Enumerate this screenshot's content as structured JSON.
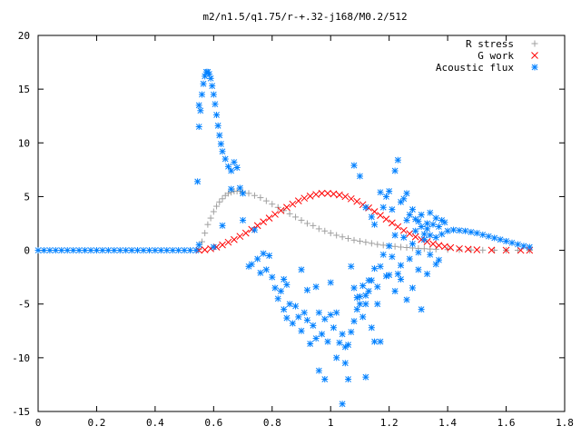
{
  "chart_data": {
    "type": "scatter",
    "title": "m2/n1.5/q1.75/r-+.32-j168/M0.2/512",
    "xlabel": "",
    "ylabel": "",
    "xlim": [
      0,
      1.8
    ],
    "ylim": [
      -15,
      20
    ],
    "xticks": [
      0,
      0.2,
      0.4,
      0.6,
      0.8,
      1,
      1.2,
      1.4,
      1.6,
      1.8
    ],
    "xtick_labels": [
      "0",
      "0.2",
      "0.4",
      "0.6",
      "0.8",
      "1",
      "1.2",
      "1.4",
      "1.6",
      "1.8"
    ],
    "yticks": [
      -15,
      -10,
      -5,
      0,
      5,
      10,
      15,
      20
    ],
    "ytick_labels": [
      "-15",
      "-10",
      "-5",
      "0",
      "5",
      "10",
      "15",
      "20"
    ],
    "grid": false,
    "legend_position": "top-right",
    "series": [
      {
        "name": "R stress",
        "marker": "plus",
        "color": "#a0a0a0",
        "points": [
          [
            0.55,
            0.1
          ],
          [
            0.56,
            0.8
          ],
          [
            0.57,
            1.6
          ],
          [
            0.58,
            2.4
          ],
          [
            0.59,
            3.0
          ],
          [
            0.6,
            3.6
          ],
          [
            0.61,
            4.1
          ],
          [
            0.62,
            4.5
          ],
          [
            0.63,
            4.8
          ],
          [
            0.64,
            5.1
          ],
          [
            0.65,
            5.3
          ],
          [
            0.66,
            5.4
          ],
          [
            0.67,
            5.5
          ],
          [
            0.68,
            5.5
          ],
          [
            0.69,
            5.5
          ],
          [
            0.7,
            5.4
          ],
          [
            0.72,
            5.3
          ],
          [
            0.74,
            5.1
          ],
          [
            0.76,
            4.9
          ],
          [
            0.78,
            4.6
          ],
          [
            0.8,
            4.3
          ],
          [
            0.82,
            4.0
          ],
          [
            0.84,
            3.7
          ],
          [
            0.86,
            3.4
          ],
          [
            0.88,
            3.1
          ],
          [
            0.9,
            2.8
          ],
          [
            0.92,
            2.5
          ],
          [
            0.94,
            2.3
          ],
          [
            0.96,
            2.0
          ],
          [
            0.98,
            1.8
          ],
          [
            1.0,
            1.6
          ],
          [
            1.02,
            1.4
          ],
          [
            1.04,
            1.25
          ],
          [
            1.06,
            1.1
          ],
          [
            1.08,
            0.95
          ],
          [
            1.1,
            0.85
          ],
          [
            1.12,
            0.75
          ],
          [
            1.14,
            0.65
          ],
          [
            1.16,
            0.55
          ],
          [
            1.18,
            0.48
          ],
          [
            1.2,
            0.42
          ],
          [
            1.22,
            0.36
          ],
          [
            1.24,
            0.3
          ],
          [
            1.26,
            0.26
          ],
          [
            1.28,
            0.22
          ],
          [
            1.3,
            0.18
          ],
          [
            1.32,
            0.15
          ],
          [
            1.34,
            0.12
          ],
          [
            1.36,
            0.1
          ],
          [
            1.4,
            0.07
          ],
          [
            1.44,
            0.05
          ],
          [
            1.48,
            0.03
          ],
          [
            1.52,
            0.02
          ],
          [
            1.56,
            0.01
          ],
          [
            1.6,
            0.01
          ],
          [
            1.64,
            0.0
          ],
          [
            1.68,
            0.0
          ]
        ]
      },
      {
        "name": "G work",
        "marker": "cross",
        "color": "#ff0000",
        "points": [
          [
            0.55,
            0.0
          ],
          [
            0.57,
            0.05
          ],
          [
            0.59,
            0.15
          ],
          [
            0.61,
            0.3
          ],
          [
            0.63,
            0.5
          ],
          [
            0.65,
            0.75
          ],
          [
            0.67,
            1.0
          ],
          [
            0.69,
            1.3
          ],
          [
            0.71,
            1.6
          ],
          [
            0.73,
            1.95
          ],
          [
            0.75,
            2.3
          ],
          [
            0.77,
            2.65
          ],
          [
            0.79,
            3.0
          ],
          [
            0.81,
            3.35
          ],
          [
            0.83,
            3.7
          ],
          [
            0.85,
            4.0
          ],
          [
            0.87,
            4.3
          ],
          [
            0.89,
            4.6
          ],
          [
            0.91,
            4.85
          ],
          [
            0.93,
            5.05
          ],
          [
            0.95,
            5.2
          ],
          [
            0.97,
            5.3
          ],
          [
            0.99,
            5.3
          ],
          [
            1.01,
            5.25
          ],
          [
            1.03,
            5.15
          ],
          [
            1.05,
            5.0
          ],
          [
            1.07,
            4.8
          ],
          [
            1.09,
            4.55
          ],
          [
            1.11,
            4.25
          ],
          [
            1.13,
            3.95
          ],
          [
            1.15,
            3.6
          ],
          [
            1.17,
            3.25
          ],
          [
            1.19,
            2.9
          ],
          [
            1.21,
            2.55
          ],
          [
            1.23,
            2.2
          ],
          [
            1.25,
            1.85
          ],
          [
            1.27,
            1.55
          ],
          [
            1.29,
            1.25
          ],
          [
            1.31,
            1.0
          ],
          [
            1.33,
            0.8
          ],
          [
            1.35,
            0.6
          ],
          [
            1.37,
            0.45
          ],
          [
            1.39,
            0.35
          ],
          [
            1.41,
            0.25
          ],
          [
            1.44,
            0.15
          ],
          [
            1.47,
            0.1
          ],
          [
            1.5,
            0.05
          ],
          [
            1.55,
            0.02
          ],
          [
            1.6,
            0.01
          ],
          [
            1.65,
            0.0
          ],
          [
            1.68,
            0.0
          ]
        ]
      },
      {
        "name": "Acoustic flux",
        "marker": "star",
        "color": "#0080ff",
        "points": [
          [
            0.0,
            0.0
          ],
          [
            0.02,
            0.0
          ],
          [
            0.04,
            0.0
          ],
          [
            0.06,
            0.0
          ],
          [
            0.08,
            0.0
          ],
          [
            0.1,
            0.0
          ],
          [
            0.12,
            0.0
          ],
          [
            0.14,
            0.0
          ],
          [
            0.16,
            0.0
          ],
          [
            0.18,
            0.0
          ],
          [
            0.2,
            0.0
          ],
          [
            0.22,
            0.0
          ],
          [
            0.24,
            0.0
          ],
          [
            0.26,
            0.0
          ],
          [
            0.28,
            0.0
          ],
          [
            0.3,
            0.0
          ],
          [
            0.32,
            0.0
          ],
          [
            0.34,
            0.0
          ],
          [
            0.36,
            0.0
          ],
          [
            0.38,
            0.0
          ],
          [
            0.4,
            0.0
          ],
          [
            0.42,
            0.0
          ],
          [
            0.44,
            0.0
          ],
          [
            0.46,
            0.0
          ],
          [
            0.48,
            0.0
          ],
          [
            0.5,
            0.0
          ],
          [
            0.52,
            0.0
          ],
          [
            0.54,
            0.0
          ],
          [
            0.545,
            6.4
          ],
          [
            0.55,
            11.5
          ],
          [
            0.555,
            13.0
          ],
          [
            0.56,
            14.5
          ],
          [
            0.565,
            15.5
          ],
          [
            0.57,
            16.2
          ],
          [
            0.575,
            16.6
          ],
          [
            0.58,
            16.6
          ],
          [
            0.585,
            16.4
          ],
          [
            0.59,
            16.0
          ],
          [
            0.595,
            15.3
          ],
          [
            0.6,
            14.5
          ],
          [
            0.605,
            13.6
          ],
          [
            0.61,
            12.6
          ],
          [
            0.615,
            11.6
          ],
          [
            0.62,
            10.7
          ],
          [
            0.625,
            9.9
          ],
          [
            0.63,
            9.2
          ],
          [
            0.64,
            8.5
          ],
          [
            0.65,
            7.8
          ],
          [
            0.66,
            7.4
          ],
          [
            0.67,
            8.2
          ],
          [
            0.68,
            7.7
          ],
          [
            0.69,
            5.8
          ],
          [
            0.7,
            5.3
          ],
          [
            0.55,
            13.5
          ],
          [
            0.55,
            0.5
          ],
          [
            0.6,
            0.3
          ],
          [
            0.63,
            2.3
          ],
          [
            0.66,
            5.7
          ],
          [
            0.7,
            2.8
          ],
          [
            0.72,
            -1.5
          ],
          [
            0.73,
            -1.3
          ],
          [
            0.74,
            1.9
          ],
          [
            0.75,
            -0.8
          ],
          [
            0.76,
            -2.1
          ],
          [
            0.77,
            -0.3
          ],
          [
            0.78,
            -1.8
          ],
          [
            0.79,
            -0.5
          ],
          [
            0.8,
            -2.5
          ],
          [
            0.81,
            -3.5
          ],
          [
            0.82,
            -4.5
          ],
          [
            0.83,
            -3.8
          ],
          [
            0.84,
            -5.5
          ],
          [
            0.85,
            -6.3
          ],
          [
            0.86,
            -5.0
          ],
          [
            0.87,
            -6.8
          ],
          [
            0.88,
            -5.2
          ],
          [
            0.89,
            -6.2
          ],
          [
            0.9,
            -7.5
          ],
          [
            0.91,
            -5.8
          ],
          [
            0.92,
            -6.5
          ],
          [
            0.93,
            -8.7
          ],
          [
            0.94,
            -7.0
          ],
          [
            0.95,
            -8.2
          ],
          [
            0.96,
            -5.8
          ],
          [
            0.97,
            -7.8
          ],
          [
            0.98,
            -6.4
          ],
          [
            0.99,
            -8.5
          ],
          [
            1.0,
            -6.0
          ],
          [
            1.01,
            -7.2
          ],
          [
            1.02,
            -5.8
          ],
          [
            1.03,
            -8.6
          ],
          [
            1.04,
            -7.8
          ],
          [
            1.05,
            -9.0
          ],
          [
            1.06,
            -8.8
          ],
          [
            1.07,
            -7.6
          ],
          [
            1.08,
            -6.6
          ],
          [
            1.09,
            -5.5
          ],
          [
            1.1,
            -4.3
          ],
          [
            1.11,
            -3.3
          ],
          [
            1.12,
            -5.0
          ],
          [
            1.13,
            -3.8
          ],
          [
            1.14,
            -2.8
          ],
          [
            1.15,
            -1.7
          ],
          [
            1.16,
            -3.4
          ],
          [
            1.17,
            -1.5
          ],
          [
            1.18,
            -0.4
          ],
          [
            1.19,
            -2.4
          ],
          [
            1.2,
            0.4
          ],
          [
            1.21,
            -0.6
          ],
          [
            1.22,
            1.4
          ],
          [
            1.23,
            -2.2
          ],
          [
            1.24,
            -1.4
          ],
          [
            1.25,
            1.2
          ],
          [
            1.26,
            2.8
          ],
          [
            1.27,
            -0.8
          ],
          [
            1.28,
            0.6
          ],
          [
            1.29,
            1.8
          ],
          [
            1.3,
            -0.2
          ],
          [
            1.31,
            2.2
          ],
          [
            1.32,
            1.0
          ],
          [
            1.33,
            2.0
          ],
          [
            1.34,
            1.4
          ],
          [
            1.35,
            2.4
          ],
          [
            1.36,
            1.2
          ],
          [
            1.37,
            2.2
          ],
          [
            1.38,
            1.5
          ],
          [
            1.39,
            2.6
          ],
          [
            1.4,
            1.8
          ],
          [
            1.42,
            1.9
          ],
          [
            1.44,
            1.85
          ],
          [
            1.46,
            1.8
          ],
          [
            1.48,
            1.7
          ],
          [
            1.5,
            1.6
          ],
          [
            1.52,
            1.45
          ],
          [
            1.54,
            1.3
          ],
          [
            1.56,
            1.15
          ],
          [
            1.58,
            1.0
          ],
          [
            1.6,
            0.85
          ],
          [
            1.62,
            0.7
          ],
          [
            1.64,
            0.55
          ],
          [
            1.66,
            0.4
          ],
          [
            1.68,
            0.3
          ],
          [
            0.98,
            -12.0
          ],
          [
            0.96,
            -11.2
          ],
          [
            1.04,
            -14.3
          ],
          [
            1.05,
            -10.5
          ],
          [
            1.06,
            -12.0
          ],
          [
            1.12,
            -11.8
          ],
          [
            1.17,
            -8.5
          ],
          [
            1.02,
            -10.0
          ],
          [
            0.85,
            -3.2
          ],
          [
            0.84,
            -2.7
          ],
          [
            0.9,
            -1.8
          ],
          [
            0.92,
            -3.7
          ],
          [
            0.95,
            -3.4
          ],
          [
            1.0,
            -3.0
          ],
          [
            1.08,
            7.9
          ],
          [
            1.1,
            6.9
          ],
          [
            1.12,
            4.0
          ],
          [
            1.14,
            3.1
          ],
          [
            1.15,
            2.4
          ],
          [
            1.17,
            5.4
          ],
          [
            1.18,
            4.0
          ],
          [
            1.19,
            5.0
          ],
          [
            1.2,
            5.5
          ],
          [
            1.21,
            3.8
          ],
          [
            1.22,
            7.4
          ],
          [
            1.23,
            8.4
          ],
          [
            1.24,
            4.5
          ],
          [
            1.25,
            4.8
          ],
          [
            1.26,
            5.3
          ],
          [
            1.27,
            3.3
          ],
          [
            1.28,
            3.8
          ],
          [
            1.29,
            2.9
          ],
          [
            1.3,
            2.7
          ],
          [
            1.31,
            3.3
          ],
          [
            1.32,
            1.5
          ],
          [
            1.33,
            2.5
          ],
          [
            1.34,
            3.5
          ],
          [
            1.36,
            3.0
          ],
          [
            1.38,
            2.8
          ],
          [
            1.07,
            -1.5
          ],
          [
            1.08,
            -3.5
          ],
          [
            1.09,
            -4.4
          ],
          [
            1.1,
            -5.0
          ],
          [
            1.11,
            -6.2
          ],
          [
            1.12,
            -4.2
          ],
          [
            1.13,
            -2.8
          ],
          [
            1.14,
            -7.2
          ],
          [
            1.15,
            -8.5
          ],
          [
            1.16,
            -5.0
          ],
          [
            1.2,
            -2.3
          ],
          [
            1.22,
            -3.8
          ],
          [
            1.24,
            -2.7
          ],
          [
            1.26,
            -4.6
          ],
          [
            1.28,
            -3.5
          ],
          [
            1.3,
            -1.8
          ],
          [
            1.31,
            -5.5
          ],
          [
            1.33,
            -2.2
          ],
          [
            1.34,
            -0.4
          ],
          [
            1.36,
            -1.3
          ],
          [
            1.37,
            -0.9
          ]
        ]
      }
    ]
  }
}
